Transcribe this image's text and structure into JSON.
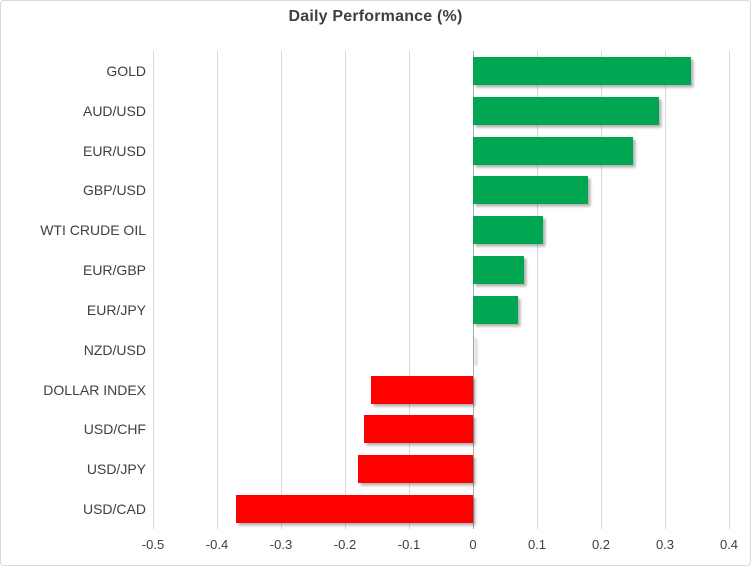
{
  "chart_data": {
    "type": "bar",
    "orientation": "horizontal",
    "title": "Daily Performance (%)",
    "categories": [
      "GOLD",
      "AUD/USD",
      "EUR/USD",
      "GBP/USD",
      "WTI CRUDE OIL",
      "EUR/GBP",
      "EUR/JPY",
      "NZD/USD",
      "DOLLAR INDEX",
      "USD/CHF",
      "USD/JPY",
      "USD/CAD"
    ],
    "values": [
      0.34,
      0.29,
      0.25,
      0.18,
      0.11,
      0.08,
      0.07,
      0.0,
      -0.16,
      -0.17,
      -0.18,
      -0.37
    ],
    "xlabel": "",
    "ylabel": "",
    "xlim": [
      -0.5,
      0.4
    ],
    "xticks": [
      -0.5,
      -0.4,
      -0.3,
      -0.2,
      -0.1,
      0,
      0.1,
      0.2,
      0.3,
      0.4
    ],
    "xtick_labels": [
      "-0.5",
      "-0.4",
      "-0.3",
      "-0.2",
      "-0.1",
      "0",
      "0.1",
      "0.2",
      "0.3",
      "0.4"
    ],
    "grid": true,
    "legend": false,
    "colors": {
      "positive": "#00a651",
      "negative": "#ff0000",
      "gridline": "#d9d9d9",
      "zero_axis": "#ababab",
      "title_text": "#404040",
      "label_text": "#404040",
      "tick_text": "#404040",
      "card_border": "#d9d9d9",
      "background": "#ffffff"
    }
  }
}
